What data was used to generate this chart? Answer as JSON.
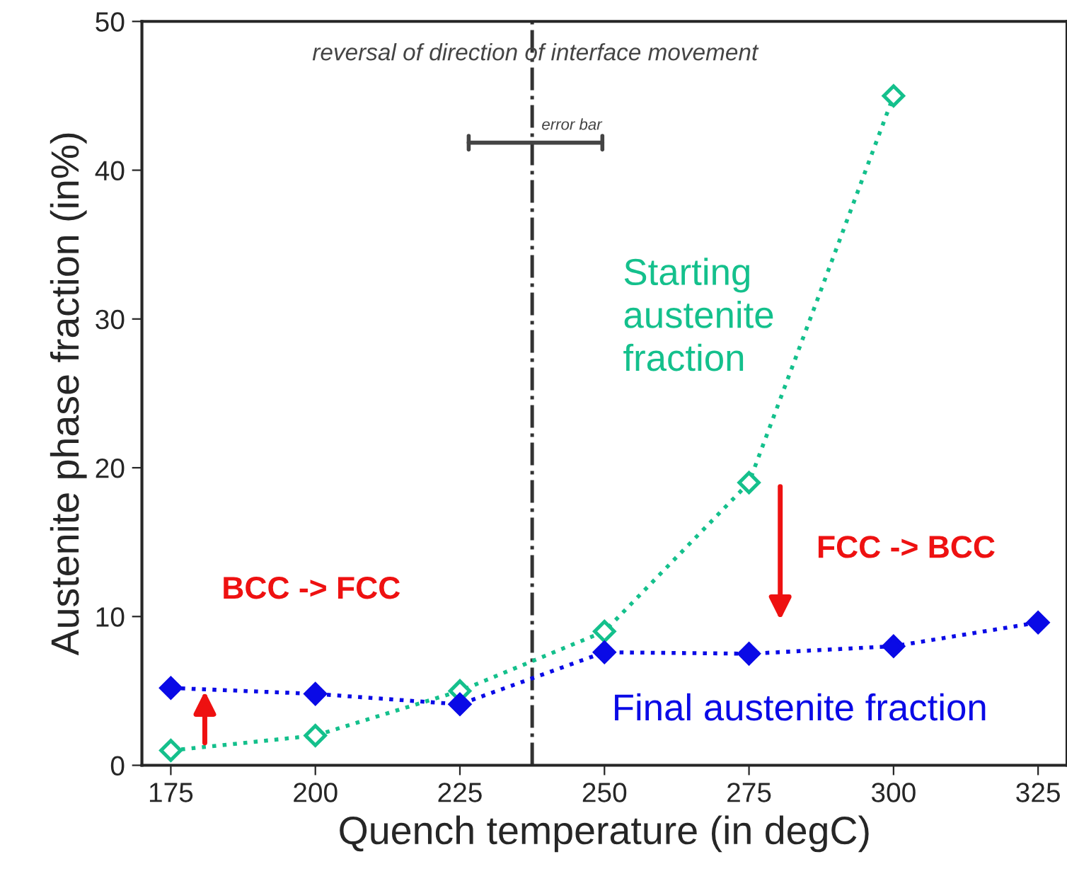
{
  "chart_data": {
    "type": "line",
    "xlabel": "Quench temperature (in degC)",
    "ylabel": "Austenite phase fraction (in%)",
    "x": [
      175,
      200,
      225,
      250,
      275,
      300,
      325
    ],
    "series": [
      {
        "name": "Starting austenite fraction",
        "color": "#14c08c",
        "values": [
          1,
          2,
          5,
          9,
          19,
          45,
          null
        ],
        "marker": "diamond",
        "line_style": "dotted"
      },
      {
        "name": "Final austenite fraction",
        "color": "#0a0ae6",
        "values": [
          5.2,
          4.8,
          4.1,
          7.6,
          7.5,
          8.0,
          9.6
        ],
        "marker": "diamond",
        "line_style": "dotted"
      }
    ],
    "xlim": [
      170,
      330
    ],
    "ylim": [
      0,
      50
    ],
    "xticks": [
      175,
      200,
      225,
      250,
      275,
      300,
      325
    ],
    "yticks": [
      0,
      10,
      20,
      30,
      40,
      50
    ],
    "ref_lines": [
      {
        "axis": "x",
        "value": 237.5,
        "color": "#333333",
        "line_style": "dashdot"
      }
    ],
    "annotations": [
      "reversal of direction of interface movement",
      "error bar",
      "BCC -> FCC",
      "FCC -> BCC"
    ],
    "grid": false,
    "legend": false
  }
}
